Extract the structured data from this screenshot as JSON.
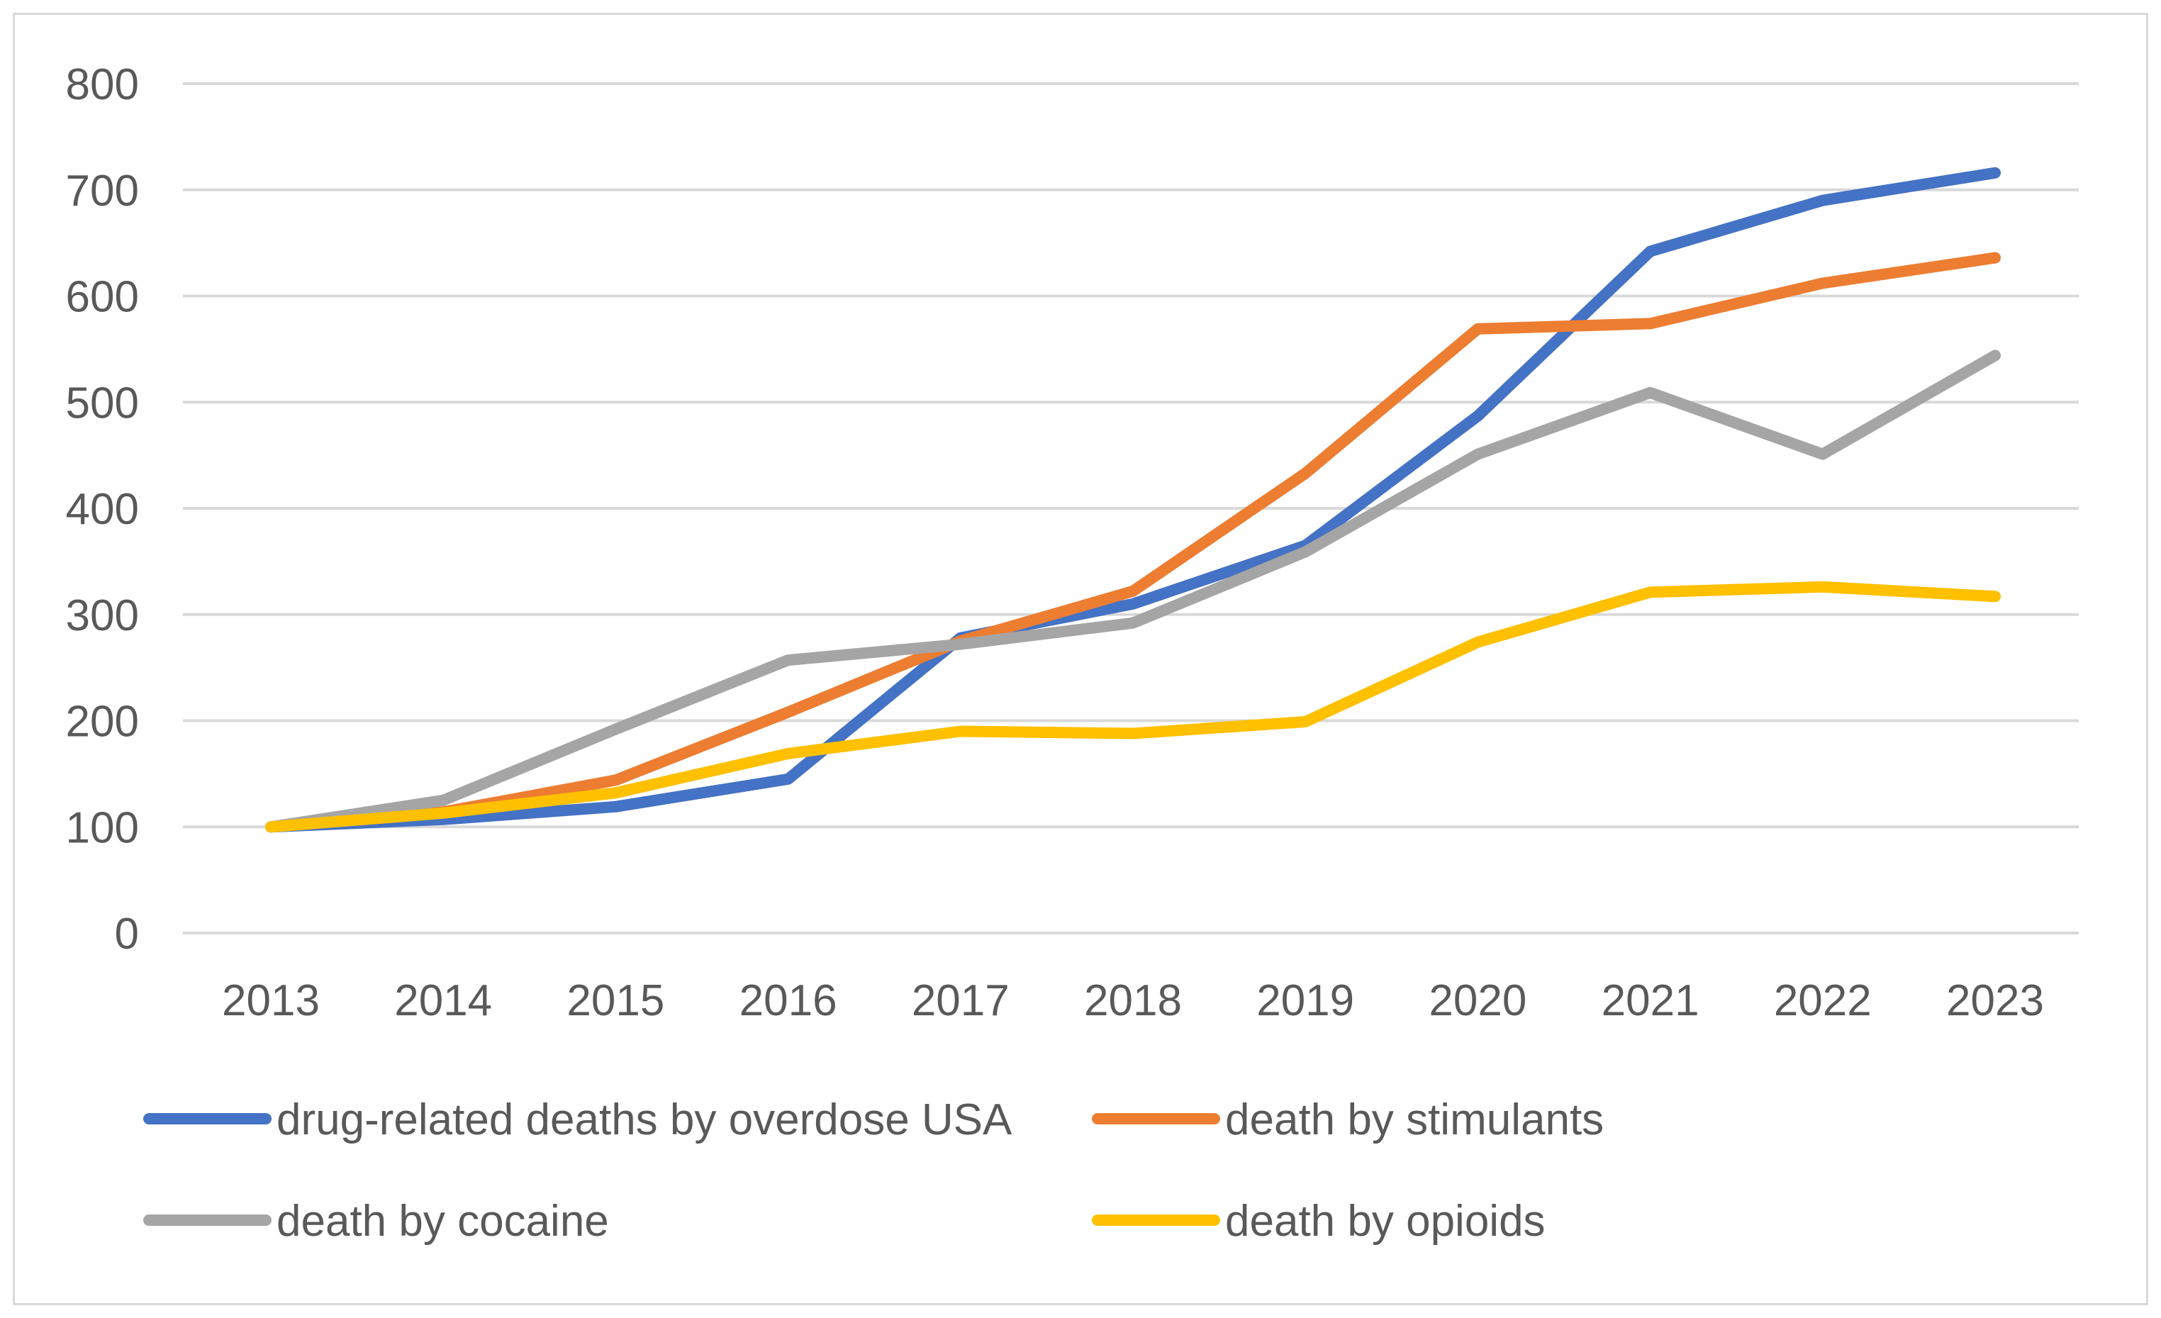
{
  "chart_data": {
    "type": "line",
    "title": "",
    "xlabel": "",
    "ylabel": "",
    "categories": [
      "2013",
      "2014",
      "2015",
      "2016",
      "2017",
      "2018",
      "2019",
      "2020",
      "2021",
      "2022",
      "2023"
    ],
    "ylim": [
      0,
      800
    ],
    "yticks": [
      0,
      100,
      200,
      300,
      400,
      500,
      600,
      700,
      800
    ],
    "grid": true,
    "legend_position": "bottom",
    "series": [
      {
        "name": "drug-related deaths by overdose USA",
        "color": "#4472c4",
        "values": [
          100,
          107,
          119,
          145,
          278,
          310,
          365,
          487,
          642,
          690,
          716
        ]
      },
      {
        "name": "death by stimulants",
        "color": "#ed7d31",
        "values": [
          100,
          114,
          144,
          208,
          275,
          322,
          433,
          569,
          574,
          612,
          636
        ]
      },
      {
        "name": "death by cocaine",
        "color": "#a5a5a5",
        "values": [
          100,
          125,
          192,
          257,
          272,
          292,
          359,
          451,
          509,
          451,
          544
        ]
      },
      {
        "name": "death by opioids",
        "color": "#ffc000",
        "values": [
          100,
          113,
          132,
          169,
          190,
          188,
          199,
          274,
          321,
          326,
          317
        ]
      }
    ]
  }
}
